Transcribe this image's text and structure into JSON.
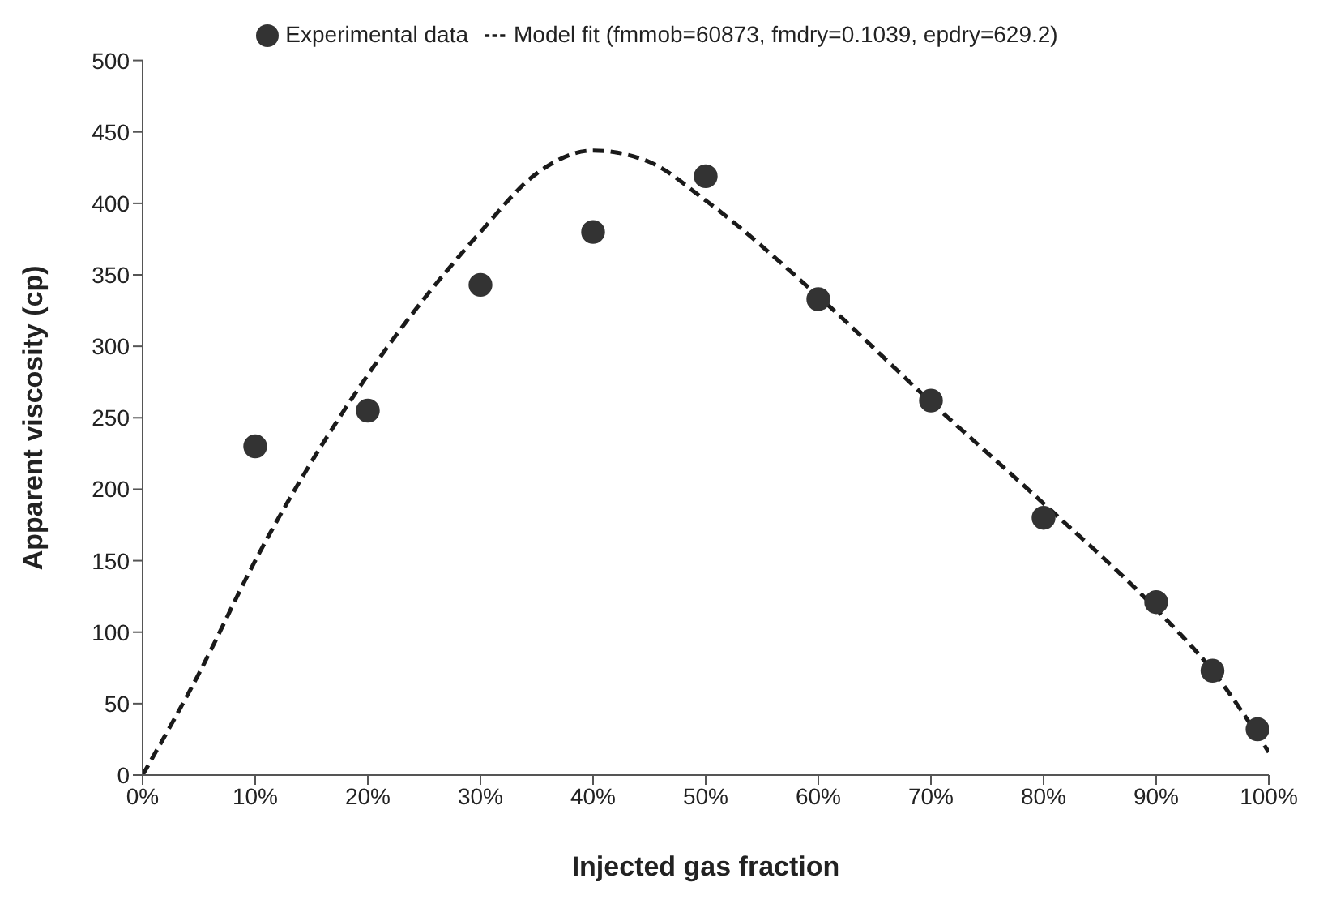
{
  "chart_data": {
    "type": "scatter",
    "xlabel": "Injected gas fraction",
    "ylabel": "Apparent viscosity (cp)",
    "xlim": [
      0,
      100
    ],
    "xticks": [
      {
        "value": 0,
        "label": "0%"
      },
      {
        "value": 10,
        "label": "10%"
      },
      {
        "value": 20,
        "label": "20%"
      },
      {
        "value": 30,
        "label": "30%"
      },
      {
        "value": 40,
        "label": "40%"
      },
      {
        "value": 50,
        "label": "50%"
      },
      {
        "value": 60,
        "label": "60%"
      },
      {
        "value": 70,
        "label": "70%"
      },
      {
        "value": 80,
        "label": "80%"
      },
      {
        "value": 90,
        "label": "90%"
      },
      {
        "value": 100,
        "label": "100%"
      }
    ],
    "ylim": [
      0,
      500
    ],
    "yticks": [
      0,
      50,
      100,
      150,
      200,
      250,
      300,
      350,
      400,
      450,
      500
    ],
    "legend": "top",
    "grid": false,
    "series": [
      {
        "name": "Experimental data",
        "color": "#333333",
        "marker": "circle",
        "x": [
          10,
          20,
          30,
          40,
          50,
          60,
          70,
          80,
          90,
          95,
          99
        ],
        "values": [
          230,
          255,
          343,
          380,
          419,
          333,
          262,
          180,
          121,
          73,
          32
        ]
      },
      {
        "name": "Model fit (fmmob=60873, fmdry=0.1039, epdry=629.2)",
        "type": "line",
        "color": "#1a1a1a",
        "marker": "none",
        "line_style": "dashed",
        "x": [
          0,
          5,
          10,
          20,
          30,
          35,
          40,
          45,
          50,
          60,
          70,
          80,
          90,
          95,
          100
        ],
        "values": [
          0,
          71,
          150,
          280,
          380,
          421,
          437,
          429,
          402,
          335,
          261,
          190,
          116,
          73,
          16
        ]
      }
    ]
  }
}
